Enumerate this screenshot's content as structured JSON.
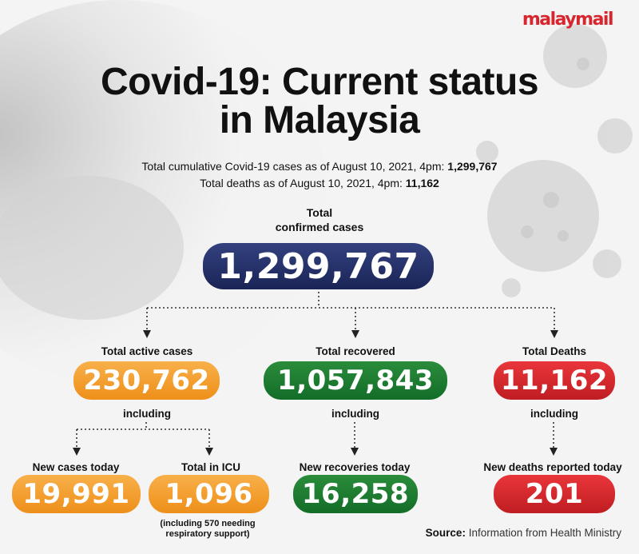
{
  "brand": "malaymail",
  "title_line1": "Covid-19: Current status",
  "title_line2": "in Malaysia",
  "subtitle1": {
    "text": "Total cumulative Covid-19 cases as of August 10, 2021, 4pm: ",
    "value": "1,299,767"
  },
  "subtitle2": {
    "text": "Total deaths as of August 10, 2021, 4pm: ",
    "value": "11,162"
  },
  "total": {
    "label_line1": "Total",
    "label_line2": "confirmed cases",
    "value": "1,299,767"
  },
  "active": {
    "label": "Total active cases",
    "value": "230,762",
    "including": "including"
  },
  "recovered": {
    "label": "Total recovered",
    "value": "1,057,843",
    "including": "including"
  },
  "deaths": {
    "label": "Total Deaths",
    "value": "11,162",
    "including": "including"
  },
  "new_cases": {
    "label": "New cases today",
    "value": "19,991"
  },
  "icu": {
    "label": "Total in ICU",
    "value": "1,096",
    "note_line1": "(including 570 needing",
    "note_line2": "respiratory support)"
  },
  "new_recoveries": {
    "label": "New recoveries today",
    "value": "16,258"
  },
  "new_deaths": {
    "label": "New deaths reported today",
    "value": "201"
  },
  "source": {
    "label": "Source:",
    "text": " Information from Health Ministry"
  },
  "colors": {
    "navy": "#1f2a5e",
    "orange": "#f39b26",
    "green": "#1b7a2f",
    "red": "#d42a2f",
    "brand": "#d7262d"
  }
}
